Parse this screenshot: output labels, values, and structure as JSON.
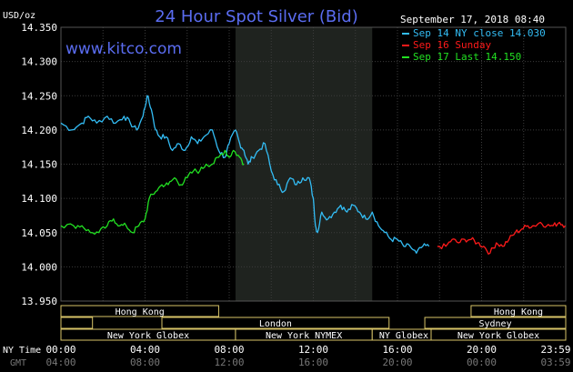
{
  "title": "24 Hour Spot Silver (Bid)",
  "website": "www.kitco.com",
  "timestamp": "September 17, 2018 08:40",
  "colors": {
    "background": "#000000",
    "plot_background": "#000000",
    "shaded_band": "#1f231f",
    "grid": "#3c3c3c",
    "text": "#ffffff",
    "title": "#5a6cf0",
    "cyan": "#33bdf5",
    "red": "#ff1a1a",
    "green": "#22e022",
    "session_fill": "#000000",
    "session_border": "#d8c468"
  },
  "legend": [
    {
      "label": "Sep 14 NY close 14.030",
      "color": "#33bdf5"
    },
    {
      "label": "Sep 16 Sunday",
      "color": "#ff1a1a"
    },
    {
      "label": "Sep 17 Last 14.150",
      "color": "#22e022"
    }
  ],
  "chart_data": {
    "type": "line",
    "title": "24 Hour Spot Silver (Bid)",
    "ylabel": "USD/oz",
    "ylim": [
      13.95,
      14.35
    ],
    "xlim": [
      0,
      24
    ],
    "yticks": [
      "14.350",
      "14.300",
      "14.250",
      "14.200",
      "14.150",
      "14.100",
      "14.050",
      "14.000",
      "13.950"
    ],
    "ytick_values": [
      14.35,
      14.3,
      14.25,
      14.2,
      14.15,
      14.1,
      14.05,
      14.0,
      13.95
    ],
    "x_ny_label": "NY Time",
    "x_gmt_label": "GMT",
    "x_ny_ticks": [
      "00:00",
      "04:00",
      "08:00",
      "12:00",
      "16:00",
      "20:00",
      "23:59"
    ],
    "x_gmt_ticks": [
      "04:00",
      "08:00",
      "12:00",
      "16:00",
      "20:00",
      "00:00",
      "03:59"
    ],
    "x_tick_hours": [
      0,
      4,
      8,
      12,
      16,
      20,
      24
    ],
    "grid": true,
    "shaded_hours": [
      8.3,
      14.8
    ],
    "series": [
      {
        "name": "Sep 14 NY close 14.030",
        "color": "#33bdf5",
        "x": [
          0,
          0.5,
          1.0,
          1.3,
          1.7,
          2.2,
          2.6,
          3.0,
          3.3,
          3.6,
          3.9,
          4.1,
          4.3,
          4.5,
          4.7,
          5.0,
          5.3,
          5.6,
          5.9,
          6.2,
          6.5,
          6.8,
          7.2,
          7.5,
          7.8,
          8.0,
          8.3,
          8.5,
          8.7,
          8.9,
          9.1,
          9.4,
          9.7,
          10.0,
          10.3,
          10.6,
          10.9,
          11.2,
          11.5,
          11.8,
          12.0,
          12.1,
          12.2,
          12.4,
          12.7,
          13.0,
          13.3,
          13.6,
          13.9,
          14.2,
          14.5,
          14.8,
          15.1,
          15.4,
          15.7,
          16.0,
          16.3,
          16.6,
          16.9,
          17.2,
          17.5
        ],
        "values": [
          14.21,
          14.2,
          14.21,
          14.22,
          14.21,
          14.22,
          14.21,
          14.22,
          14.21,
          14.2,
          14.22,
          14.25,
          14.23,
          14.2,
          14.19,
          14.19,
          14.17,
          14.18,
          14.17,
          14.19,
          14.18,
          14.19,
          14.2,
          14.17,
          14.16,
          14.18,
          14.2,
          14.18,
          14.17,
          14.15,
          14.16,
          14.17,
          14.18,
          14.14,
          14.12,
          14.11,
          14.13,
          14.12,
          14.13,
          14.13,
          14.1,
          14.06,
          14.05,
          14.08,
          14.07,
          14.08,
          14.09,
          14.08,
          14.09,
          14.08,
          14.07,
          14.08,
          14.06,
          14.05,
          14.04,
          14.04,
          14.03,
          14.03,
          14.02,
          14.03,
          14.03
        ]
      },
      {
        "name": "Sep 16 Sunday",
        "color": "#ff1a1a",
        "x": [
          17.9,
          18.3,
          18.6,
          18.9,
          19.2,
          19.5,
          19.8,
          20.1,
          20.4,
          20.7,
          21.0,
          21.3,
          21.6,
          21.9,
          22.2,
          22.5,
          22.8,
          23.1,
          23.4,
          23.7,
          23.98
        ],
        "values": [
          14.03,
          14.03,
          14.04,
          14.035,
          14.04,
          14.04,
          14.035,
          14.03,
          14.02,
          14.035,
          14.03,
          14.04,
          14.05,
          14.055,
          14.06,
          14.06,
          14.065,
          14.06,
          14.06,
          14.065,
          14.06
        ]
      },
      {
        "name": "Sep 17 Last 14.150",
        "color": "#22e022",
        "x": [
          0,
          0.6,
          1.0,
          1.4,
          1.8,
          2.2,
          2.5,
          2.8,
          3.1,
          3.4,
          3.7,
          4.0,
          4.2,
          4.5,
          4.8,
          5.1,
          5.4,
          5.7,
          6.0,
          6.3,
          6.6,
          6.9,
          7.2,
          7.5,
          7.8,
          8.0,
          8.2,
          8.5,
          8.7
        ],
        "values": [
          14.06,
          14.06,
          14.06,
          14.05,
          14.05,
          14.06,
          14.07,
          14.06,
          14.06,
          14.05,
          14.06,
          14.07,
          14.1,
          14.11,
          14.12,
          14.12,
          14.13,
          14.12,
          14.13,
          14.14,
          14.14,
          14.15,
          14.15,
          14.16,
          14.17,
          14.16,
          14.17,
          14.16,
          14.15
        ]
      }
    ]
  },
  "sessions": [
    {
      "label": "Hong Kong",
      "row": 0,
      "start_hour": 0,
      "end_hour": 7.5
    },
    {
      "label": "",
      "row": 1,
      "start_hour": 0,
      "end_hour": 1.5
    },
    {
      "label": "London",
      "row": 1,
      "start_hour": 4.8,
      "end_hour": 15.6
    },
    {
      "label": "New York Globex",
      "row": 2,
      "start_hour": 0,
      "end_hour": 8.3
    },
    {
      "label": "New York NYMEX",
      "row": 2,
      "start_hour": 8.3,
      "end_hour": 14.8
    },
    {
      "label": "NY Globex",
      "row": 2,
      "start_hour": 14.8,
      "end_hour": 17.8
    },
    {
      "label": "Hong Kong",
      "row": 0,
      "start_hour": 19.5,
      "end_hour": 24
    },
    {
      "label": "Sydney",
      "row": 1,
      "start_hour": 17.3,
      "end_hour": 24
    },
    {
      "label": "New York Globex",
      "row": 2,
      "start_hour": 17.6,
      "end_hour": 24
    }
  ]
}
